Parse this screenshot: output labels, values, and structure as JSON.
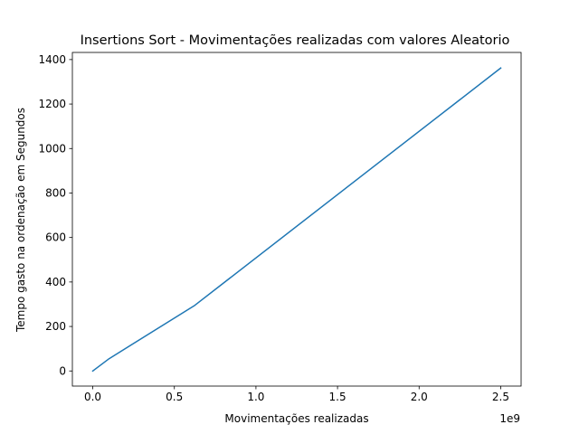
{
  "chart_data": {
    "type": "line",
    "title": "Insertions Sort - Movimentações realizadas com valores Aleatorio",
    "xlabel": "Movimentações realizadas",
    "ylabel": "Tempo gasto na ordenação  em Segundos",
    "x_offset_label": "1e9",
    "xlim": [
      -0.125,
      2.625
    ],
    "ylim": [
      -68,
      1432
    ],
    "x_ticks": [
      0.0,
      0.5,
      1.0,
      1.5,
      2.0,
      2.5
    ],
    "x_tick_labels": [
      "0.0",
      "0.5",
      "1.0",
      "1.5",
      "2.0",
      "2.5"
    ],
    "y_ticks": [
      0,
      200,
      400,
      600,
      800,
      1000,
      1200,
      1400
    ],
    "y_tick_labels": [
      "0",
      "200",
      "400",
      "600",
      "800",
      "1000",
      "1200",
      "1400"
    ],
    "grid": false,
    "series": [
      {
        "color": "#1f77b4",
        "x": [
          0.0,
          0.1,
          0.625,
          2.5
        ],
        "y": [
          0,
          55,
          295,
          1362
        ]
      }
    ]
  }
}
